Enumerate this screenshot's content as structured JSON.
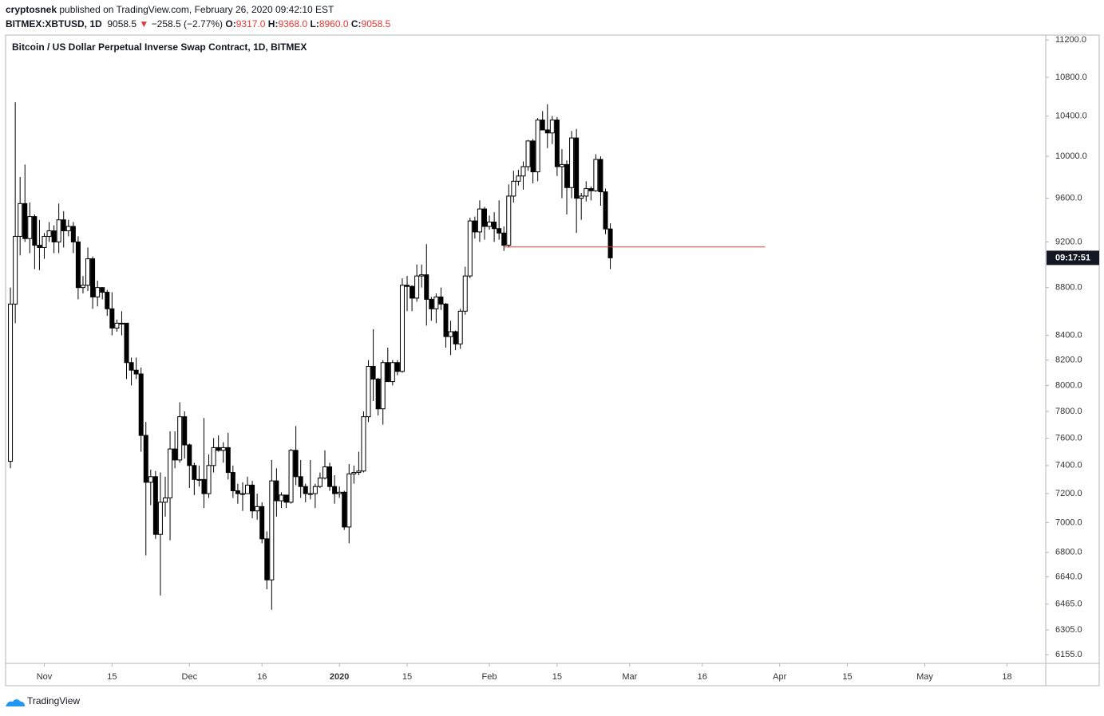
{
  "header": {
    "author": "cryptosnek",
    "published": "published on TradingView.com, February 26, 2020 09:42:10 EST",
    "symbol": "BITMEX:XBTUSD, 1D",
    "last": "9058.5",
    "arrow": "▼",
    "change": "−258.5 (−2.77%)",
    "o_label": "O:",
    "o": "9317.0",
    "h_label": "H:",
    "h": "9368.0",
    "l_label": "L:",
    "l": "8960.0",
    "c_label": "C:",
    "c": "9058.5"
  },
  "footer": {
    "brand": "TradingView"
  },
  "chart_data": {
    "type": "candlestick",
    "title": "Bitcoin / US Dollar Perpetual Inverse Swap Contract, 1D, BITMEX",
    "log": true,
    "up_color": "#ffffff",
    "down_color": "#000000",
    "border_color": "#000000",
    "x": [
      "2019-10-25",
      "2019-10-26",
      "2019-10-27",
      "2019-10-28",
      "2019-10-29",
      "2019-10-30",
      "2019-10-31",
      "2019-11-01",
      "2019-11-02",
      "2019-11-03",
      "2019-11-04",
      "2019-11-05",
      "2019-11-06",
      "2019-11-07",
      "2019-11-08",
      "2019-11-09",
      "2019-11-10",
      "2019-11-11",
      "2019-11-12",
      "2019-11-13",
      "2019-11-14",
      "2019-11-15",
      "2019-11-16",
      "2019-11-17",
      "2019-11-18",
      "2019-11-19",
      "2019-11-20",
      "2019-11-21",
      "2019-11-22",
      "2019-11-23",
      "2019-11-24",
      "2019-11-25",
      "2019-11-26",
      "2019-11-27",
      "2019-11-28",
      "2019-11-29",
      "2019-11-30",
      "2019-12-01",
      "2019-12-02",
      "2019-12-03",
      "2019-12-04",
      "2019-12-05",
      "2019-12-06",
      "2019-12-07",
      "2019-12-08",
      "2019-12-09",
      "2019-12-10",
      "2019-12-11",
      "2019-12-12",
      "2019-12-13",
      "2019-12-14",
      "2019-12-15",
      "2019-12-16",
      "2019-12-17",
      "2019-12-18",
      "2019-12-19",
      "2019-12-20",
      "2019-12-21",
      "2019-12-22",
      "2019-12-23",
      "2019-12-24",
      "2019-12-25",
      "2019-12-26",
      "2019-12-27",
      "2019-12-28",
      "2019-12-29",
      "2019-12-30",
      "2019-12-31",
      "2020-01-01",
      "2020-01-02",
      "2020-01-03",
      "2020-01-04",
      "2020-01-05",
      "2020-01-06",
      "2020-01-07",
      "2020-01-08",
      "2020-01-09",
      "2020-01-10",
      "2020-01-11",
      "2020-01-12",
      "2020-01-13",
      "2020-01-14",
      "2020-01-15",
      "2020-01-16",
      "2020-01-17",
      "2020-01-18",
      "2020-01-19",
      "2020-01-20",
      "2020-01-21",
      "2020-01-22",
      "2020-01-23",
      "2020-01-24",
      "2020-01-25",
      "2020-01-26",
      "2020-01-27",
      "2020-01-28",
      "2020-01-29",
      "2020-01-30",
      "2020-01-31",
      "2020-02-01",
      "2020-02-02",
      "2020-02-03",
      "2020-02-04",
      "2020-02-05",
      "2020-02-06",
      "2020-02-07",
      "2020-02-08",
      "2020-02-09",
      "2020-02-10",
      "2020-02-11",
      "2020-02-12",
      "2020-02-13",
      "2020-02-14",
      "2020-02-15",
      "2020-02-16",
      "2020-02-17",
      "2020-02-18",
      "2020-02-19",
      "2020-02-20",
      "2020-02-21",
      "2020-02-22",
      "2020-02-23",
      "2020-02-24",
      "2020-02-25",
      "2020-02-26"
    ],
    "open": [
      7430,
      8660,
      9250,
      9550,
      9230,
      9430,
      9170,
      9150,
      9250,
      9300,
      9200,
      9400,
      9300,
      9340,
      9200,
      8800,
      8820,
      9050,
      8720,
      8800,
      8760,
      8620,
      8460,
      8500,
      8500,
      8180,
      8120,
      8090,
      7620,
      7280,
      7320,
      6920,
      7140,
      7170,
      7520,
      7440,
      7760,
      7550,
      7400,
      7300,
      7300,
      7200,
      7400,
      7530,
      7510,
      7530,
      7350,
      7220,
      7200,
      7200,
      7260,
      7080,
      7110,
      6890,
      6620,
      7290,
      7150,
      7190,
      7140,
      7510,
      7320,
      7250,
      7200,
      7200,
      7250,
      7310,
      7390,
      7250,
      7200,
      7210,
      6970,
      7340,
      7350,
      7360,
      7760,
      8150,
      8050,
      7820,
      8180,
      8030,
      8180,
      8110,
      8820,
      8810,
      8710,
      8900,
      8910,
      8700,
      8620,
      8720,
      8660,
      8390,
      8430,
      8330,
      8600,
      8900,
      9390,
      9290,
      9500,
      9340,
      9380,
      9320,
      9280,
      9170,
      9620,
      9760,
      9810,
      9900,
      10150,
      9850,
      10360,
      10260,
      10230,
      10360,
      9900,
      9920,
      9700,
      10180,
      9600,
      9620,
      9690,
      9670,
      9970,
      9660,
      9317
    ],
    "high": [
      8800,
      10540,
      9800,
      9920,
      9560,
      9450,
      9400,
      9280,
      9380,
      9350,
      9550,
      9480,
      9400,
      9380,
      9250,
      8900,
      9150,
      9070,
      8860,
      8800,
      8780,
      8760,
      8530,
      8600,
      8500,
      8220,
      8220,
      8140,
      7720,
      7370,
      7360,
      7350,
      7320,
      7650,
      7650,
      7870,
      7800,
      7560,
      7420,
      7400,
      7750,
      7480,
      7600,
      7620,
      7570,
      7640,
      7400,
      7270,
      7280,
      7320,
      7290,
      7200,
      7140,
      6940,
      7440,
      7380,
      7210,
      7190,
      7520,
      7690,
      7440,
      7270,
      7440,
      7270,
      7350,
      7510,
      7420,
      7330,
      7250,
      7220,
      7410,
      7400,
      7500,
      7800,
      8200,
      8450,
      8060,
      8200,
      8300,
      8200,
      8200,
      8880,
      8900,
      8820,
      9000,
      9000,
      9180,
      8720,
      8750,
      8800,
      8670,
      8520,
      8440,
      8620,
      8980,
      9420,
      9430,
      9580,
      9520,
      9440,
      9470,
      9580,
      9340,
      9730,
      9860,
      9870,
      9950,
      10160,
      10170,
      10380,
      10450,
      10520,
      10400,
      10390,
      10070,
      9960,
      10250,
      10270,
      9650,
      9760,
      9710,
      10020,
      10000,
      9690,
      9368
    ],
    "low": [
      7380,
      8500,
      9080,
      9200,
      9100,
      8960,
      8950,
      9050,
      9200,
      9100,
      9100,
      9150,
      9250,
      9100,
      8700,
      8750,
      8770,
      8620,
      8640,
      8700,
      8560,
      8400,
      8430,
      8400,
      8050,
      8000,
      8050,
      7500,
      6780,
      7120,
      6890,
      6520,
      7040,
      6880,
      7380,
      7420,
      7450,
      7240,
      7190,
      7250,
      7100,
      7170,
      7350,
      7500,
      7420,
      7300,
      7170,
      7130,
      7080,
      7200,
      7030,
      7020,
      6860,
      6560,
      6430,
      7040,
      7100,
      7100,
      7130,
      7260,
      7170,
      7140,
      7160,
      7100,
      7240,
      7300,
      7220,
      7130,
      7170,
      6950,
      6860,
      7270,
      7330,
      7350,
      7720,
      7880,
      7770,
      7700,
      8030,
      8000,
      8080,
      8100,
      8600,
      8600,
      8680,
      8800,
      8480,
      8520,
      8500,
      8610,
      8300,
      8240,
      8280,
      8290,
      8570,
      8880,
      9230,
      9200,
      9220,
      9310,
      9200,
      9220,
      9120,
      9150,
      9560,
      9720,
      9680,
      9860,
      9740,
      9760,
      10260,
      10080,
      10120,
      9810,
      9600,
      9450,
      9600,
      9280,
      9400,
      9570,
      9580,
      9660,
      9530,
      9270,
      8960
    ],
    "close": [
      8660,
      9250,
      9550,
      9230,
      9430,
      9170,
      9150,
      9250,
      9300,
      9200,
      9400,
      9300,
      9340,
      9200,
      8800,
      8820,
      9050,
      8720,
      8800,
      8760,
      8620,
      8460,
      8500,
      8500,
      8180,
      8120,
      8090,
      7620,
      7280,
      7320,
      6920,
      7140,
      7170,
      7520,
      7440,
      7760,
      7550,
      7400,
      7300,
      7300,
      7200,
      7400,
      7530,
      7510,
      7530,
      7350,
      7220,
      7200,
      7200,
      7260,
      7080,
      7110,
      6890,
      6620,
      7290,
      7150,
      7190,
      7140,
      7510,
      7320,
      7250,
      7200,
      7200,
      7250,
      7310,
      7390,
      7250,
      7200,
      7210,
      6970,
      7340,
      7350,
      7360,
      7760,
      8150,
      8050,
      7820,
      8180,
      8030,
      8180,
      8110,
      8820,
      8810,
      8710,
      8900,
      8910,
      8700,
      8620,
      8720,
      8660,
      8390,
      8430,
      8330,
      8600,
      8900,
      9390,
      9290,
      9500,
      9340,
      9380,
      9320,
      9280,
      9170,
      9620,
      9760,
      9810,
      9900,
      10150,
      9850,
      10360,
      10260,
      10230,
      10360,
      9900,
      9920,
      9700,
      10180,
      9600,
      9620,
      9690,
      9670,
      9970,
      9660,
      9317,
      9058.5
    ],
    "countdown": "09:17:51",
    "hline": {
      "value": 9155,
      "from": "2020-02-04",
      "to": "2020-03-29",
      "color": "#e53935"
    },
    "xlim": [
      "2019-10-24",
      "2020-05-26"
    ],
    "xticks": [
      {
        "value": "2019-11-01",
        "label": "Nov"
      },
      {
        "value": "2019-11-15",
        "label": "15"
      },
      {
        "value": "2019-12-01",
        "label": "Dec"
      },
      {
        "value": "2019-12-16",
        "label": "16"
      },
      {
        "value": "2020-01-01",
        "label": "2020"
      },
      {
        "value": "2020-01-15",
        "label": "15"
      },
      {
        "value": "2020-02-01",
        "label": "Feb"
      },
      {
        "value": "2020-02-15",
        "label": "15"
      },
      {
        "value": "2020-03-01",
        "label": "Mar"
      },
      {
        "value": "2020-03-16",
        "label": "16"
      },
      {
        "value": "2020-04-01",
        "label": "Apr"
      },
      {
        "value": "2020-04-15",
        "label": "15"
      },
      {
        "value": "2020-05-01",
        "label": "May"
      },
      {
        "value": "2020-05-18",
        "label": "18"
      }
    ],
    "ylim": [
      6103,
      11253
    ],
    "yticks": [
      {
        "value": 6155,
        "label": "6155.0"
      },
      {
        "value": 6305,
        "label": "6305.0"
      },
      {
        "value": 6465,
        "label": "6465.0"
      },
      {
        "value": 6640,
        "label": "6640.0"
      },
      {
        "value": 6800,
        "label": "6800.0"
      },
      {
        "value": 7000,
        "label": "7000.0"
      },
      {
        "value": 7200,
        "label": "7200.0"
      },
      {
        "value": 7400,
        "label": "7400.0"
      },
      {
        "value": 7600,
        "label": "7600.0"
      },
      {
        "value": 7800,
        "label": "7800.0"
      },
      {
        "value": 8000,
        "label": "8000.0"
      },
      {
        "value": 8200,
        "label": "8200.0"
      },
      {
        "value": 8400,
        "label": "8400.0"
      },
      {
        "value": 8800,
        "label": "8800.0"
      },
      {
        "value": 9200,
        "label": "9200.0"
      },
      {
        "value": 9600,
        "label": "9600.0"
      },
      {
        "value": 10000,
        "label": "10000.0"
      },
      {
        "value": 10400,
        "label": "10400.0"
      },
      {
        "value": 10800,
        "label": "10800.0"
      },
      {
        "value": 11200,
        "label": "11200.0"
      }
    ]
  }
}
